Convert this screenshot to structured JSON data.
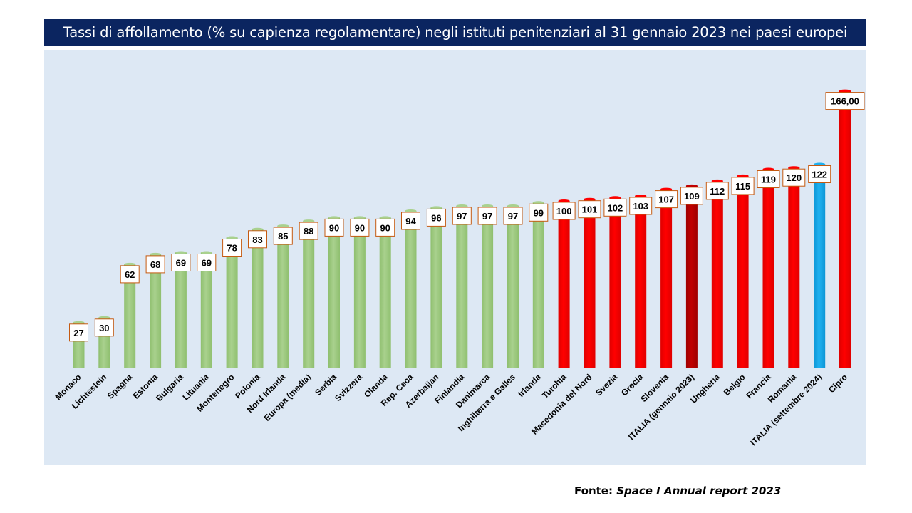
{
  "header": {
    "title": "Tassi di affollamento (% su capienza regolamentare) negli istituti penitenziari  al 31 gennaio 2023 nei paesi europei"
  },
  "source": {
    "label": "Fonte:",
    "text": "Space I Annual report 2023"
  },
  "colors": {
    "background": "#dde8f4",
    "title_bg": "#0b2560",
    "green": "#a9d18e",
    "red": "#ff0000",
    "dark_red": "#c00000",
    "blue": "#1fb1f0",
    "label_border": "#c55a11"
  },
  "chart_data": {
    "type": "bar",
    "title": "Tassi di affollamento (% su capienza regolamentare) negli istituti penitenziari  al 31 gennaio 2023 nei paesi europei",
    "xlabel": "",
    "ylabel": "",
    "ylim": [
      0,
      175
    ],
    "grid": false,
    "legend": "none",
    "categories": [
      "Monaco",
      "Lichtestein",
      "Spagna",
      "Estonia",
      "Bulgaria",
      "Lituania",
      "Montenegro",
      "Polonia",
      "Nord Irlanda",
      "Europa (media)",
      "Serbia",
      "Svizzera",
      "Olanda",
      "Rep. Ceca",
      "Azerbaijan",
      "Finlandia",
      "Danimarca",
      "Inghilterra e Galles",
      "Irlanda",
      "Turchia",
      "Macedonia del Nord",
      "Svezia",
      "Grecia",
      "Slovenia",
      "ITALIA (gennaio 2023)",
      "Ungheria",
      "Belgio",
      "Francia",
      "Romania",
      "ITALIA (settembre 2024)",
      "Cipro"
    ],
    "values": [
      27,
      30,
      62,
      68,
      69,
      69,
      78,
      83,
      85,
      88,
      90,
      90,
      90,
      94,
      96,
      97,
      97,
      97,
      99,
      100,
      101,
      102,
      103,
      107,
      109,
      112,
      115,
      119,
      120,
      122,
      166
    ],
    "value_labels": [
      "27",
      "30",
      "62",
      "68",
      "69",
      "69",
      "78",
      "83",
      "85",
      "88",
      "90",
      "90",
      "90",
      "94",
      "96",
      "97",
      "97",
      "97",
      "99",
      "100",
      "101",
      "102",
      "103",
      "107",
      "109",
      "112",
      "115",
      "119",
      "120",
      "122",
      "166,00"
    ],
    "bar_colors": [
      "green",
      "green",
      "green",
      "green",
      "green",
      "green",
      "green",
      "green",
      "green",
      "green",
      "green",
      "green",
      "green",
      "green",
      "green",
      "green",
      "green",
      "green",
      "green",
      "red",
      "red",
      "red",
      "red",
      "red",
      "dark_red",
      "red",
      "red",
      "red",
      "red",
      "blue",
      "red"
    ]
  }
}
